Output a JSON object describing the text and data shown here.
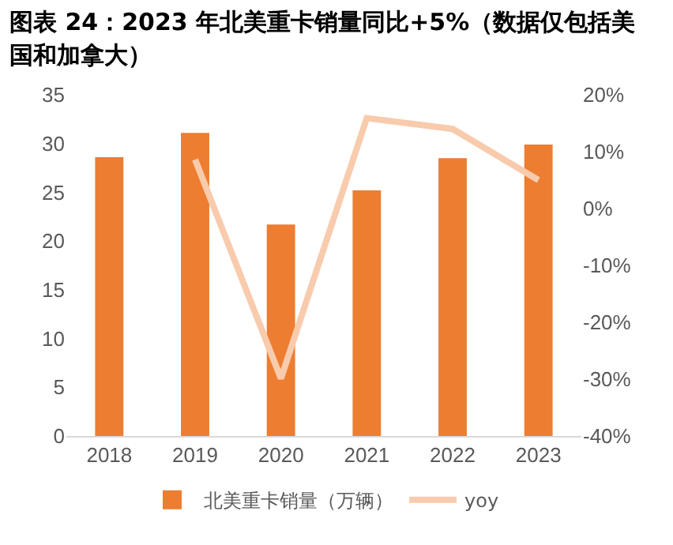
{
  "chart_data": {
    "type": "bar",
    "title": "图表 24：2023 年北美重卡销量同比+5%（数据仅包括美国和加拿大）",
    "categories": [
      "2018",
      "2019",
      "2020",
      "2021",
      "2022",
      "2023"
    ],
    "series": [
      {
        "name": "北美重卡销量（万辆）",
        "color": "#ed7d31",
        "values": [
          28.6,
          31.1,
          21.7,
          25.2,
          28.5,
          29.9
        ]
      },
      {
        "name": "yoy",
        "type": "line",
        "axis": "y2",
        "color": "#f8cbad",
        "values": [
          null,
          8.6,
          -29.9,
          15.9,
          14.0,
          5.0
        ]
      }
    ],
    "ylim": [
      0,
      35
    ],
    "yticks": [
      0,
      5,
      10,
      15,
      20,
      25,
      30,
      35
    ],
    "y2lim": [
      -40,
      20
    ],
    "y2ticks": [
      {
        "value": -40,
        "label": "-40%"
      },
      {
        "value": -30,
        "label": "-30%"
      },
      {
        "value": -20,
        "label": "-20%"
      },
      {
        "value": -10,
        "label": "-10%"
      },
      {
        "value": 0,
        "label": "0%"
      },
      {
        "value": 10,
        "label": "10%"
      },
      {
        "value": 20,
        "label": "20%"
      }
    ],
    "grid": false,
    "legend": "bottom",
    "marker": "none"
  }
}
